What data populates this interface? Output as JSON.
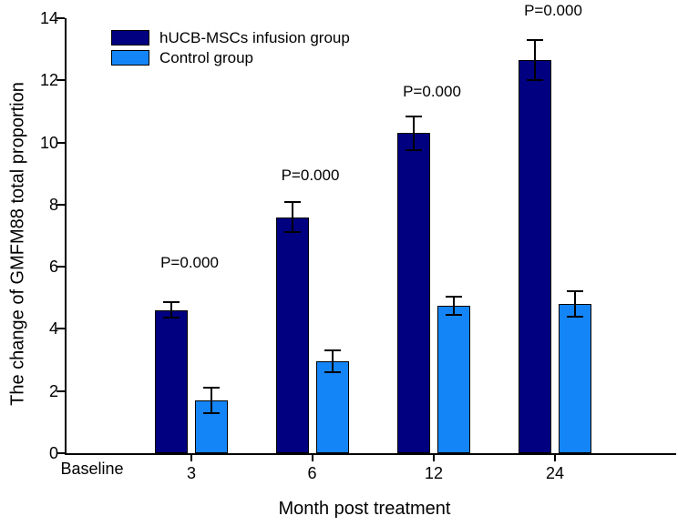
{
  "figure": {
    "y_axis_title": "The change of GMFM88 total proportion",
    "x_axis_title": "Month post treatment"
  },
  "legend": {
    "items": [
      {
        "label": "hUCB-MSCs infusion group",
        "color": "#000080"
      },
      {
        "label": "Control group",
        "color": "#1485F6"
      }
    ]
  },
  "chart_data": {
    "type": "bar",
    "title": "",
    "xlabel": "Month post treatment",
    "ylabel": "The change of GMFM88 total proportion",
    "categories": [
      "Baseline",
      "3",
      "6",
      "12",
      "24"
    ],
    "series": [
      {
        "name": "hUCB-MSCs infusion group",
        "color": "#000080",
        "values": [
          null,
          4.6,
          7.6,
          10.3,
          12.65
        ],
        "errors": [
          null,
          0.25,
          0.48,
          0.55,
          0.65
        ]
      },
      {
        "name": "Control group",
        "color": "#1485F6",
        "values": [
          null,
          1.7,
          2.95,
          4.75,
          4.8
        ],
        "errors": [
          null,
          0.4,
          0.35,
          0.3,
          0.4
        ]
      }
    ],
    "annotations": [
      {
        "text": "P=0.000",
        "category_index": 1,
        "y": 5.9
      },
      {
        "text": "P=0.000",
        "category_index": 2,
        "y": 8.7
      },
      {
        "text": "P=0.000",
        "category_index": 3,
        "y": 11.4
      },
      {
        "text": "P=0.000",
        "category_index": 4,
        "y": 14.0
      }
    ],
    "ylim": [
      0,
      14
    ],
    "ytick_step": 2,
    "grid": false,
    "error_bars": true,
    "bar_outline_color": "#000000",
    "legend_position": "top-left-inside"
  }
}
